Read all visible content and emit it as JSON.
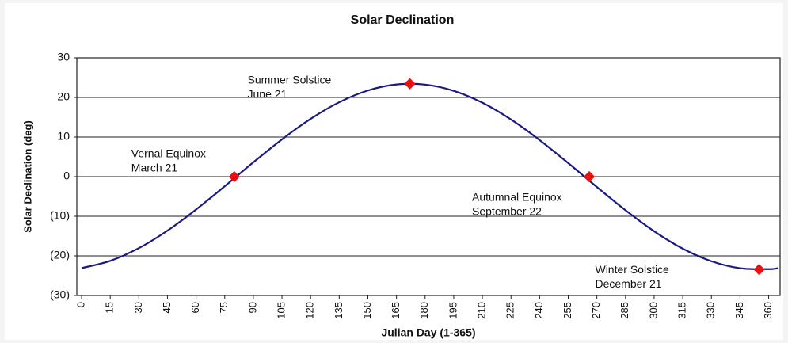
{
  "chart_data": {
    "type": "line",
    "title": "Solar Declination",
    "x_label": "Julian Day (1-365)",
    "y_label": "Solar Declination (deg)",
    "series": [
      {
        "name": "Solar Declination",
        "color": "#1a1a80",
        "x": [
          0,
          15,
          30,
          45,
          60,
          75,
          90,
          105,
          120,
          135,
          150,
          165,
          180,
          195,
          210,
          225,
          240,
          255,
          270,
          285,
          300,
          315,
          330,
          345,
          360,
          365
        ],
        "values": [
          -23.09,
          -21.27,
          -18.04,
          -13.62,
          -8.29,
          -2.42,
          3.62,
          9.41,
          14.59,
          18.79,
          21.75,
          23.27,
          23.24,
          21.67,
          18.67,
          14.43,
          9.23,
          3.42,
          -2.62,
          -8.48,
          -13.78,
          -18.17,
          -21.35,
          -23.12,
          -23.35,
          -23.09
        ]
      }
    ],
    "markers": {
      "color": "#e81010",
      "x": [
        80,
        172,
        266,
        355
      ],
      "values": [
        0,
        23.45,
        0,
        -23.45
      ],
      "labels": [
        [
          "Vernal Equinox",
          "March 21"
        ],
        [
          "Summer Solstice",
          "June 21"
        ],
        [
          "Autumnal Equinox",
          "September 22"
        ],
        [
          "Winter Solstice",
          "December 21"
        ]
      ]
    },
    "xlim": [
      -2.5,
      366
    ],
    "ylim": [
      -30,
      30
    ],
    "xticks": [
      0,
      15,
      30,
      45,
      60,
      75,
      90,
      105,
      120,
      135,
      150,
      165,
      180,
      195,
      210,
      225,
      240,
      255,
      270,
      285,
      300,
      315,
      330,
      345,
      360
    ],
    "yticks": [
      {
        "value": -30,
        "label": "(30)"
      },
      {
        "value": -20,
        "label": "(20)"
      },
      {
        "value": -10,
        "label": "(10)"
      },
      0,
      10,
      20,
      30
    ],
    "negative_tick_color": "#d02020",
    "grid": true
  }
}
